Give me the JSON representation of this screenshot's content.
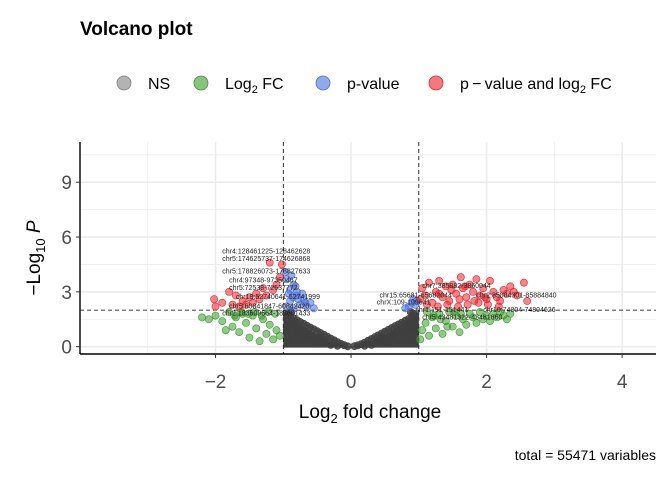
{
  "chart_data": {
    "type": "scatter",
    "title": "Volcano plot",
    "xlabel": "Log₂ fold change",
    "ylabel": "−Log₁₀ P",
    "caption": "total = 55471 variables",
    "xlim": [
      -4,
      4.5
    ],
    "ylim": [
      -0.4,
      11.2
    ],
    "xticks": [
      -2,
      0,
      2,
      4
    ],
    "yticks": [
      0,
      3,
      6,
      9
    ],
    "grid": true,
    "legend_position": "top",
    "fc_cutoff": 1,
    "p_cutoff": 2,
    "legend": [
      {
        "label": "NS",
        "key": "ns",
        "color": "#808080"
      },
      {
        "label": "Log₂ FC",
        "key": "fc",
        "color": "#3a9a2b"
      },
      {
        "label": "p-value",
        "key": "p",
        "color": "#4a6fd8"
      },
      {
        "label": "p − value and log₂ FC",
        "key": "pfc",
        "color": "#e8222a"
      }
    ],
    "series": [
      {
        "key": "pfc",
        "points": [
          [
            -1.02,
            4.5
          ],
          [
            -1.05,
            3.8
          ],
          [
            -1.1,
            3.4
          ],
          [
            -1.15,
            3.1
          ],
          [
            -1.2,
            4.6
          ],
          [
            -1.25,
            2.8
          ],
          [
            -1.3,
            3.2
          ],
          [
            -1.35,
            2.6
          ],
          [
            -1.4,
            2.9
          ],
          [
            -1.45,
            2.4
          ],
          [
            -1.5,
            2.7
          ],
          [
            -1.55,
            2.3
          ],
          [
            -1.6,
            2.5
          ],
          [
            -1.7,
            2.8
          ],
          [
            -1.8,
            3.0
          ],
          [
            -1.9,
            2.4
          ],
          [
            -2.0,
            2.2
          ],
          [
            -2.02,
            2.6
          ],
          [
            -1.65,
            2.2
          ],
          [
            -1.75,
            2.3
          ],
          [
            1.02,
            2.6
          ],
          [
            1.05,
            3.2
          ],
          [
            1.1,
            2.8
          ],
          [
            1.15,
            3.5
          ],
          [
            1.2,
            2.4
          ],
          [
            1.25,
            3.0
          ],
          [
            1.3,
            3.6
          ],
          [
            1.35,
            2.7
          ],
          [
            1.4,
            3.3
          ],
          [
            1.45,
            2.5
          ],
          [
            1.5,
            3.4
          ],
          [
            1.55,
            2.9
          ],
          [
            1.6,
            2.6
          ],
          [
            1.62,
            3.8
          ],
          [
            1.65,
            3.2
          ],
          [
            1.7,
            2.7
          ],
          [
            1.75,
            3.4
          ],
          [
            1.8,
            3.0
          ],
          [
            1.85,
            3.7
          ],
          [
            1.9,
            2.8
          ],
          [
            1.95,
            3.2
          ],
          [
            2.0,
            2.6
          ],
          [
            2.05,
            3.6
          ],
          [
            2.1,
            3.0
          ],
          [
            2.15,
            2.7
          ],
          [
            2.2,
            2.5
          ],
          [
            2.25,
            3.1
          ],
          [
            2.3,
            2.9
          ],
          [
            2.35,
            3.3
          ],
          [
            2.4,
            3.0
          ],
          [
            2.45,
            2.8
          ],
          [
            2.55,
            3.5
          ],
          [
            2.6,
            2.5
          ],
          [
            1.12,
            2.3
          ],
          [
            1.28,
            2.2
          ],
          [
            1.42,
            2.3
          ],
          [
            1.58,
            2.2
          ],
          [
            1.72,
            2.3
          ],
          [
            1.88,
            2.4
          ],
          [
            2.02,
            2.3
          ],
          [
            2.18,
            2.2
          ],
          [
            1.3,
            2.9
          ],
          [
            1.48,
            3.1
          ],
          [
            1.68,
            3.3
          ],
          [
            1.82,
            2.5
          ],
          [
            1.98,
            2.7
          ]
        ]
      },
      {
        "key": "fc",
        "points": [
          [
            -1.05,
            0.6
          ],
          [
            -1.1,
            0.9
          ],
          [
            -1.15,
            0.4
          ],
          [
            -1.2,
            1.2
          ],
          [
            -1.25,
            0.7
          ],
          [
            -1.3,
            1.5
          ],
          [
            -1.35,
            0.3
          ],
          [
            -1.4,
            1.0
          ],
          [
            -1.45,
            1.7
          ],
          [
            -1.5,
            0.5
          ],
          [
            -1.55,
            1.3
          ],
          [
            -1.6,
            1.8
          ],
          [
            -1.65,
            0.8
          ],
          [
            -1.7,
            1.6
          ],
          [
            -1.75,
            1.1
          ],
          [
            -1.8,
            1.9
          ],
          [
            -1.85,
            0.9
          ],
          [
            -1.9,
            1.4
          ],
          [
            -2.0,
            1.7
          ],
          [
            -2.1,
            1.5
          ],
          [
            -2.2,
            1.6
          ],
          [
            -1.12,
            1.8
          ],
          [
            -1.22,
            1.9
          ],
          [
            -1.32,
            1.7
          ],
          [
            -1.42,
            1.9
          ],
          [
            -1.52,
            1.8
          ],
          [
            -1.62,
            1.9
          ],
          [
            -1.72,
            1.7
          ],
          [
            1.02,
            0.4
          ],
          [
            1.05,
            0.9
          ],
          [
            1.1,
            1.3
          ],
          [
            1.15,
            0.6
          ],
          [
            1.2,
            1.6
          ],
          [
            1.25,
            1.0
          ],
          [
            1.3,
            1.8
          ],
          [
            1.35,
            0.7
          ],
          [
            1.4,
            1.4
          ],
          [
            1.45,
            1.9
          ],
          [
            1.5,
            1.1
          ],
          [
            1.55,
            1.7
          ],
          [
            1.6,
            0.8
          ],
          [
            1.65,
            1.5
          ],
          [
            1.7,
            1.2
          ],
          [
            1.75,
            1.8
          ],
          [
            1.8,
            1.6
          ],
          [
            1.85,
            1.3
          ],
          [
            1.9,
            1.9
          ],
          [
            1.95,
            1.5
          ],
          [
            2.0,
            1.7
          ],
          [
            2.05,
            1.4
          ],
          [
            2.1,
            1.8
          ],
          [
            2.15,
            1.6
          ],
          [
            2.2,
            1.9
          ],
          [
            2.25,
            1.7
          ],
          [
            2.3,
            1.5
          ],
          [
            2.35,
            1.8
          ],
          [
            1.12,
            1.9
          ],
          [
            1.22,
            1.7
          ],
          [
            1.32,
            1.5
          ],
          [
            1.42,
            1.1
          ],
          [
            1.52,
            1.9
          ],
          [
            1.62,
            1.8
          ]
        ]
      },
      {
        "key": "p",
        "points": [
          [
            -0.95,
            2.2
          ],
          [
            -0.9,
            2.5
          ],
          [
            -0.85,
            2.1
          ],
          [
            -0.8,
            2.8
          ],
          [
            -0.75,
            2.3
          ],
          [
            -0.7,
            2.6
          ],
          [
            -0.65,
            2.2
          ],
          [
            -0.6,
            2.4
          ],
          [
            -0.55,
            2.1
          ],
          [
            -0.9,
            3.1
          ],
          [
            -0.85,
            3.4
          ],
          [
            -0.95,
            3.7
          ],
          [
            -0.8,
            3.0
          ],
          [
            -0.88,
            3.9
          ],
          [
            -0.92,
            2.9
          ],
          [
            -0.78,
            2.6
          ],
          [
            -0.72,
            2.9
          ],
          [
            -0.68,
            2.4
          ],
          [
            -0.82,
            3.3
          ],
          [
            -0.97,
            4.1
          ],
          [
            -0.86,
            2.7
          ],
          [
            0.85,
            2.2
          ],
          [
            0.9,
            2.4
          ],
          [
            0.95,
            2.3
          ],
          [
            0.8,
            2.1
          ],
          [
            0.92,
            2.6
          ],
          [
            0.97,
            2.5
          ]
        ]
      },
      {
        "key": "ns",
        "points": [
          [
            -0.05,
            0.02
          ],
          [
            0.05,
            0.03
          ],
          [
            -0.1,
            0.08
          ],
          [
            0.1,
            0.07
          ],
          [
            -0.15,
            0.15
          ],
          [
            0.15,
            0.14
          ],
          [
            -0.2,
            0.25
          ],
          [
            0.2,
            0.22
          ],
          [
            -0.25,
            0.35
          ],
          [
            0.25,
            0.32
          ],
          [
            -0.3,
            0.45
          ],
          [
            0.3,
            0.42
          ],
          [
            -0.35,
            0.55
          ],
          [
            0.35,
            0.52
          ],
          [
            -0.4,
            0.65
          ],
          [
            0.4,
            0.62
          ],
          [
            -0.45,
            0.75
          ],
          [
            0.45,
            0.72
          ],
          [
            -0.5,
            0.85
          ],
          [
            0.5,
            0.82
          ],
          [
            -0.55,
            0.95
          ],
          [
            0.55,
            0.92
          ],
          [
            -0.6,
            1.05
          ],
          [
            0.6,
            1.02
          ],
          [
            -0.65,
            1.15
          ],
          [
            0.65,
            1.12
          ],
          [
            -0.7,
            1.25
          ],
          [
            0.7,
            1.22
          ],
          [
            -0.75,
            1.35
          ],
          [
            0.75,
            1.32
          ],
          [
            -0.8,
            1.45
          ],
          [
            0.8,
            1.42
          ],
          [
            -0.85,
            1.55
          ],
          [
            0.85,
            1.52
          ],
          [
            -0.9,
            1.65
          ],
          [
            0.9,
            1.62
          ],
          [
            -0.95,
            1.75
          ],
          [
            0.95,
            1.72
          ],
          [
            -0.3,
            0.1
          ],
          [
            0.3,
            0.1
          ],
          [
            -0.5,
            0.2
          ],
          [
            0.5,
            0.2
          ],
          [
            -0.7,
            0.3
          ],
          [
            0.7,
            0.3
          ],
          [
            -0.9,
            0.4
          ],
          [
            0.9,
            0.4
          ],
          [
            -0.6,
            0.5
          ],
          [
            0.6,
            0.5
          ],
          [
            -0.8,
            0.7
          ],
          [
            0.8,
            0.7
          ],
          [
            -0.95,
            0.9
          ],
          [
            0.95,
            0.9
          ],
          [
            -0.9,
            1.2
          ],
          [
            0.9,
            1.2
          ],
          [
            -0.95,
            1.5
          ],
          [
            0.95,
            1.5
          ],
          [
            -0.75,
            0.9
          ],
          [
            0.75,
            0.9
          ],
          [
            -0.85,
            1.1
          ],
          [
            0.85,
            1.1
          ],
          [
            -0.4,
            0.3
          ],
          [
            0.4,
            0.3
          ],
          [
            -0.2,
            0.05
          ],
          [
            0.2,
            0.05
          ],
          [
            -0.65,
            0.6
          ],
          [
            0.65,
            0.6
          ],
          [
            -0.55,
            0.4
          ],
          [
            0.55,
            0.4
          ],
          [
            -0.45,
            0.5
          ],
          [
            0.45,
            0.5
          ],
          [
            -0.88,
            1.9
          ],
          [
            0.88,
            1.9
          ],
          [
            -0.92,
            1.85
          ],
          [
            0.92,
            1.8
          ]
        ]
      }
    ],
    "annotations": [
      {
        "text": "chr4:128461225-128462628",
        "x": -1.9,
        "y": 5.1
      },
      {
        "text": "chr5:174625737-174626868",
        "x": -1.9,
        "y": 4.7
      },
      {
        "text": "chr5:178826073-178827633",
        "x": -1.9,
        "y": 4.0
      },
      {
        "text": "chr4:97348-97350467",
        "x": -1.8,
        "y": 3.5
      },
      {
        "text": "chr5:72538-72537772",
        "x": -1.8,
        "y": 3.1
      },
      {
        "text": "chr18:52740641-52741999",
        "x": -1.7,
        "y": 2.6
      },
      {
        "text": "chr5:60841847-60842420",
        "x": -1.8,
        "y": 2.1
      },
      {
        "text": "chr2:183609664-183601433",
        "x": -1.9,
        "y": 1.7
      },
      {
        "text": "chr15:65681-65682044",
        "x": 0.42,
        "y": 2.7
      },
      {
        "text": "chrX:109-109641",
        "x": 0.38,
        "y": 2.3
      },
      {
        "text": "chr7:385882-3860044",
        "x": 1.05,
        "y": 3.2
      },
      {
        "text": "chr2:85884301-85884840",
        "x": 1.85,
        "y": 2.7
      },
      {
        "text": "chr1:151-151441",
        "x": 0.95,
        "y": 1.9
      },
      {
        "text": "chr5:43481322-43481860",
        "x": 1.05,
        "y": 1.5
      },
      {
        "text": "chr10:74804-74804626",
        "x": 1.95,
        "y": 1.9
      }
    ]
  }
}
